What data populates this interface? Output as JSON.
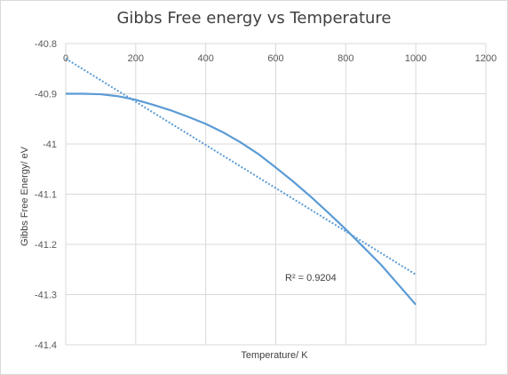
{
  "chart_data": {
    "type": "line",
    "title": "Gibbs Free energy vs Temperature",
    "xlabel": "Temperature/  K",
    "ylabel": "Gibbs Free Energy/  eV",
    "xlim": [
      0,
      1200
    ],
    "ylim": [
      -41.4,
      -40.8
    ],
    "x_ticks": [
      0,
      200,
      400,
      600,
      800,
      1000,
      1200
    ],
    "x_tick_labels": [
      "0",
      "200",
      "400",
      "600",
      "800",
      "1000",
      "1200"
    ],
    "y_ticks": [
      -40.8,
      -40.9,
      -41,
      -41.1,
      -41.2,
      -41.3,
      -41.4
    ],
    "y_tick_labels": [
      "-40.8",
      "-40.9",
      "-41",
      "-41.1",
      "-41.2",
      "-41.3",
      "-41.4"
    ],
    "grid": true,
    "series": [
      {
        "style": "solid",
        "x": [
          0,
          50,
          100,
          150,
          200,
          250,
          300,
          350,
          400,
          450,
          500,
          550,
          600,
          650,
          700,
          750,
          800,
          850,
          900,
          950,
          1000
        ],
        "y": [
          -40.9,
          -40.9,
          -40.901,
          -40.905,
          -40.912,
          -40.922,
          -40.933,
          -40.946,
          -40.96,
          -40.977,
          -40.997,
          -41.02,
          -41.047,
          -41.075,
          -41.105,
          -41.137,
          -41.17,
          -41.205,
          -41.24,
          -41.28,
          -41.32
        ]
      }
    ],
    "trendline": {
      "style": "dotted",
      "x": [
        0,
        1000
      ],
      "y": [
        -40.83,
        -41.26
      ],
      "r_squared_label": "R² = 0.9204"
    },
    "colors": {
      "series": "#5b9bd5",
      "grid": "#d9d9d9",
      "text": "#595959"
    }
  }
}
